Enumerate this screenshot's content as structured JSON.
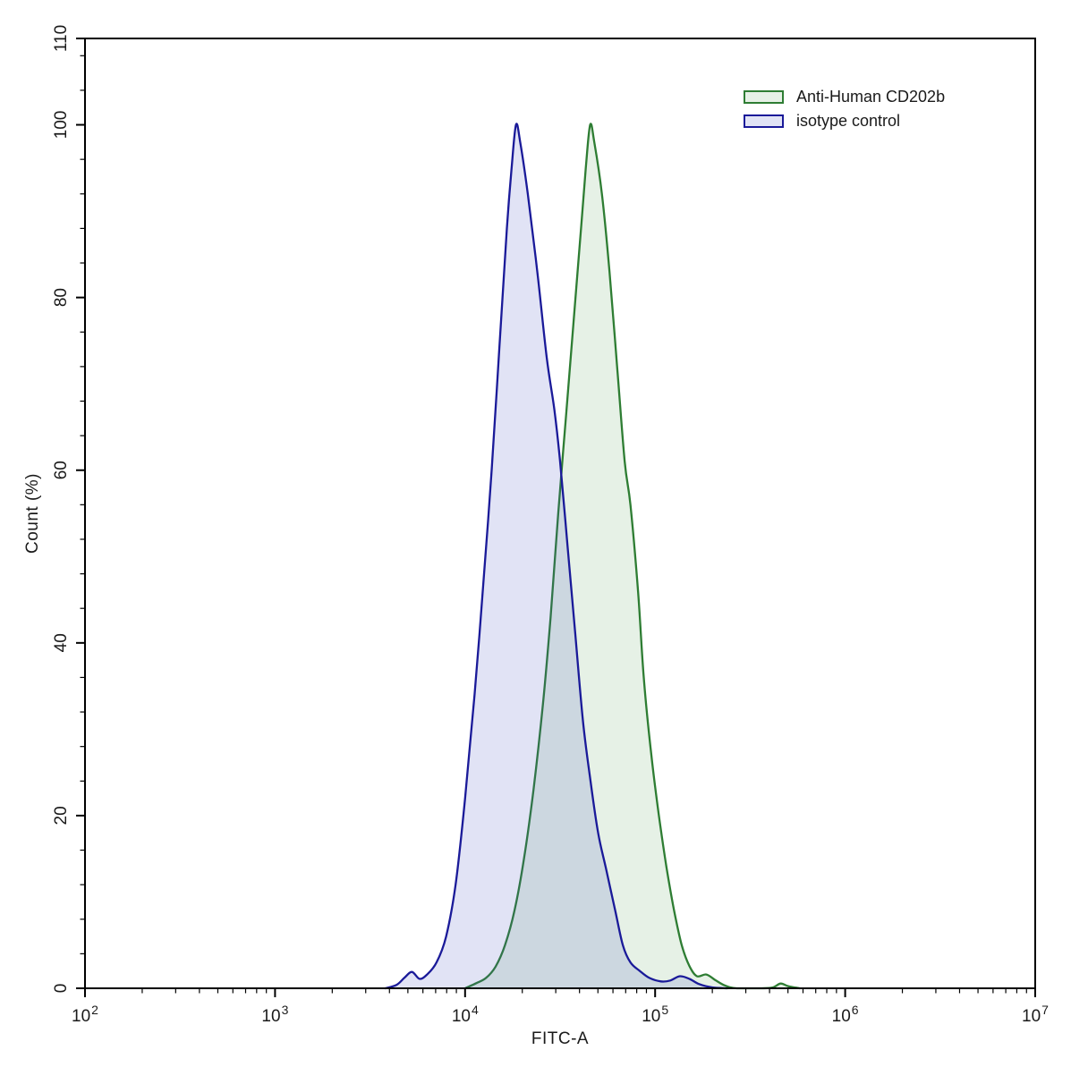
{
  "legend": {
    "items": [
      {
        "label": "Anti-Human CD202b",
        "line_color": "#2e7d33",
        "fill_color": "rgba(85,160,85,0.15)"
      },
      {
        "label": "isotype control",
        "line_color": "#1a1a99",
        "fill_color": "rgba(70,80,195,0.16)"
      }
    ]
  },
  "chart_data": {
    "type": "area",
    "subtype": "flow-cytometry-histogram",
    "title": "",
    "xlabel": "FITC-A",
    "ylabel": "Count  (%)",
    "x_scale": "log10",
    "xlim_log10": [
      2,
      7
    ],
    "ylim": [
      0,
      110
    ],
    "x_tick_exponents": [
      2,
      3,
      4,
      5,
      6,
      7
    ],
    "x_minor_ticks_per_decade": [
      2,
      3,
      4,
      5,
      6,
      7,
      8,
      9
    ],
    "y_ticks": [
      0,
      20,
      40,
      60,
      80,
      100,
      110
    ],
    "y_minor_step": 4,
    "grid": false,
    "legend_position": "top-right-inside",
    "axis_color": "#000000",
    "series": [
      {
        "name": "Anti-Human CD202b",
        "line_color": "#2e7d33",
        "fill_color": "rgba(85,160,85,0.15)",
        "peak_x": 45000,
        "peak_y_pct": 100,
        "points_log10x_pct": [
          [
            4.0,
            0
          ],
          [
            4.06,
            0.6
          ],
          [
            4.11,
            1.2
          ],
          [
            4.16,
            2.5
          ],
          [
            4.21,
            5
          ],
          [
            4.26,
            9
          ],
          [
            4.31,
            15
          ],
          [
            4.36,
            23
          ],
          [
            4.41,
            33
          ],
          [
            4.45,
            43
          ],
          [
            4.49,
            55
          ],
          [
            4.53,
            66
          ],
          [
            4.57,
            77
          ],
          [
            4.61,
            88
          ],
          [
            4.635,
            95
          ],
          [
            4.658,
            100
          ],
          [
            4.68,
            98
          ],
          [
            4.72,
            92
          ],
          [
            4.76,
            83
          ],
          [
            4.8,
            72
          ],
          [
            4.84,
            61
          ],
          [
            4.87,
            56
          ],
          [
            4.91,
            46
          ],
          [
            4.94,
            36
          ],
          [
            4.98,
            27
          ],
          [
            5.02,
            20
          ],
          [
            5.06,
            14
          ],
          [
            5.1,
            9
          ],
          [
            5.14,
            5
          ],
          [
            5.18,
            2.6
          ],
          [
            5.22,
            1.4
          ],
          [
            5.27,
            1.6
          ],
          [
            5.32,
            0.9
          ],
          [
            5.37,
            0.3
          ],
          [
            5.43,
            0
          ],
          [
            5.56,
            0
          ],
          [
            5.62,
            0.1
          ],
          [
            5.66,
            0.55
          ],
          [
            5.7,
            0.25
          ],
          [
            5.76,
            0
          ]
        ]
      },
      {
        "name": "isotype control",
        "line_color": "#1a1a99",
        "fill_color": "rgba(70,80,195,0.16)",
        "peak_x": 18000,
        "peak_y_pct": 100,
        "points_log10x_pct": [
          [
            3.58,
            0
          ],
          [
            3.64,
            0.4
          ],
          [
            3.68,
            1.2
          ],
          [
            3.72,
            1.9
          ],
          [
            3.76,
            1.1
          ],
          [
            3.8,
            1.6
          ],
          [
            3.85,
            3
          ],
          [
            3.9,
            6
          ],
          [
            3.95,
            12
          ],
          [
            4.0,
            22
          ],
          [
            4.05,
            34
          ],
          [
            4.1,
            48
          ],
          [
            4.14,
            60
          ],
          [
            4.18,
            74
          ],
          [
            4.22,
            88
          ],
          [
            4.245,
            95
          ],
          [
            4.268,
            100
          ],
          [
            4.29,
            98
          ],
          [
            4.33,
            92
          ],
          [
            4.38,
            83
          ],
          [
            4.43,
            73
          ],
          [
            4.47,
            67
          ],
          [
            4.5,
            61
          ],
          [
            4.54,
            51
          ],
          [
            4.58,
            41
          ],
          [
            4.62,
            31
          ],
          [
            4.66,
            24
          ],
          [
            4.7,
            18
          ],
          [
            4.74,
            14
          ],
          [
            4.79,
            9
          ],
          [
            4.83,
            5
          ],
          [
            4.87,
            3
          ],
          [
            4.92,
            2
          ],
          [
            4.97,
            1.2
          ],
          [
            5.03,
            0.8
          ],
          [
            5.08,
            0.9
          ],
          [
            5.13,
            1.4
          ],
          [
            5.18,
            1.1
          ],
          [
            5.23,
            0.5
          ],
          [
            5.3,
            0.1
          ],
          [
            5.38,
            0
          ]
        ]
      }
    ]
  }
}
